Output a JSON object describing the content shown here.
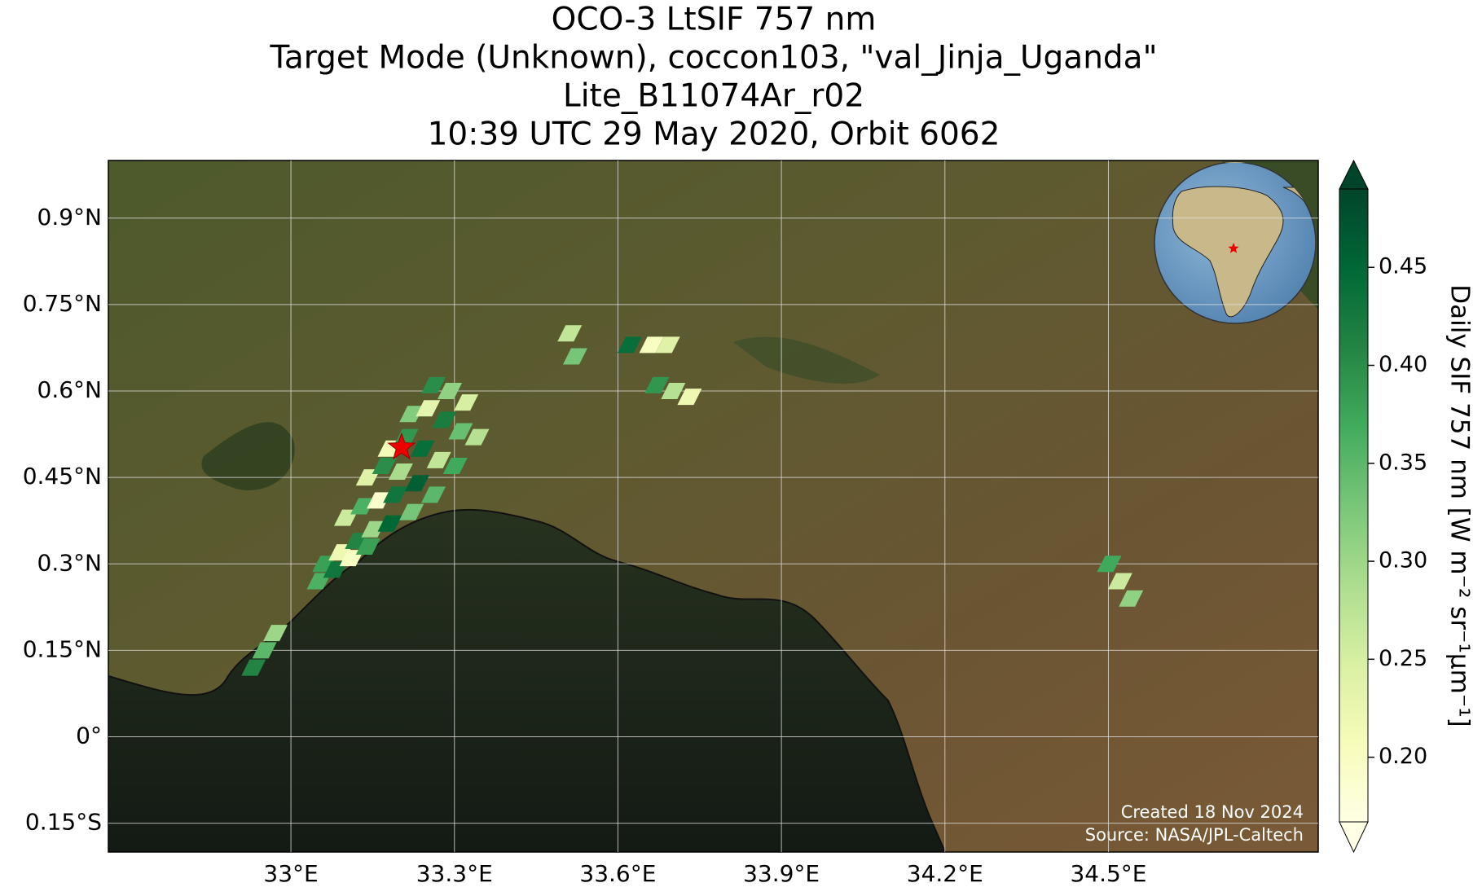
{
  "chart_data": {
    "type": "map",
    "title": "OCO-3 LtSIF 757 nm",
    "subtitle": [
      "Target Mode (Unknown), coccon103, \"val_Jinja_Uganda\"",
      "Lite_B11074Ar_r02",
      "10:39 UTC 29 May 2020, Orbit 6062"
    ],
    "xlim": [
      32.665,
      34.885
    ],
    "ylim": [
      -0.2,
      1.0
    ],
    "xticks": [
      {
        "value": 33,
        "label": "33°E"
      },
      {
        "value": 33.3,
        "label": "33.3°E"
      },
      {
        "value": 33.6,
        "label": "33.6°E"
      },
      {
        "value": 33.9,
        "label": "33.9°E"
      },
      {
        "value": 34.2,
        "label": "34.2°E"
      },
      {
        "value": 34.5,
        "label": "34.5°E"
      }
    ],
    "yticks": [
      {
        "value": -0.15,
        "label": "0.15°S"
      },
      {
        "value": 0,
        "label": "0°"
      },
      {
        "value": 0.15,
        "label": "0.15°N"
      },
      {
        "value": 0.3,
        "label": "0.3°N"
      },
      {
        "value": 0.45,
        "label": "0.45°N"
      },
      {
        "value": 0.6,
        "label": "0.6°N"
      },
      {
        "value": 0.75,
        "label": "0.75°N"
      },
      {
        "value": 0.9,
        "label": "0.9°N"
      }
    ],
    "grid": true,
    "colorbar": {
      "label": "Daily SIF 757 nm [W m⁻² sr⁻¹μm⁻¹]",
      "clim": [
        0.167,
        0.49
      ],
      "ticks": [
        {
          "value": 0.2,
          "label": "0.20"
        },
        {
          "value": 0.25,
          "label": "0.25"
        },
        {
          "value": 0.3,
          "label": "0.30"
        },
        {
          "value": 0.35,
          "label": "0.35"
        },
        {
          "value": 0.4,
          "label": "0.40"
        },
        {
          "value": 0.45,
          "label": "0.45"
        }
      ],
      "colormap": [
        "#ffffe5",
        "#f7fcb9",
        "#d9f0a3",
        "#addd8e",
        "#78c679",
        "#41ab5d",
        "#238443",
        "#006837",
        "#004529"
      ]
    },
    "soundings": {
      "lon": [
        33.06,
        33.09,
        33.12,
        33.15,
        33.18,
        33.1,
        33.13,
        33.16,
        33.19,
        33.22,
        33.14,
        33.17,
        33.2,
        33.23,
        33.26,
        33.18,
        33.21,
        33.24,
        33.27,
        33.3,
        33.22,
        33.25,
        33.28,
        33.31,
        33.34,
        33.26,
        33.29,
        33.32,
        33.05,
        33.08,
        33.11,
        33.14,
        32.93,
        32.95,
        32.97,
        33.52,
        33.51,
        33.62,
        33.67,
        33.7,
        33.73,
        34.5,
        34.52,
        34.54,
        33.66,
        33.69
      ],
      "lat": [
        0.3,
        0.32,
        0.34,
        0.36,
        0.37,
        0.38,
        0.4,
        0.41,
        0.42,
        0.39,
        0.45,
        0.47,
        0.46,
        0.44,
        0.42,
        0.5,
        0.52,
        0.5,
        0.48,
        0.47,
        0.56,
        0.57,
        0.55,
        0.53,
        0.52,
        0.61,
        0.6,
        0.58,
        0.27,
        0.29,
        0.31,
        0.33,
        0.12,
        0.15,
        0.18,
        0.66,
        0.7,
        0.68,
        0.61,
        0.6,
        0.59,
        0.3,
        0.27,
        0.24,
        0.68,
        0.68
      ],
      "values": [
        0.38,
        0.22,
        0.41,
        0.3,
        0.45,
        0.26,
        0.36,
        0.19,
        0.43,
        0.33,
        0.24,
        0.4,
        0.29,
        0.46,
        0.35,
        0.21,
        0.39,
        0.44,
        0.27,
        0.37,
        0.32,
        0.23,
        0.42,
        0.34,
        0.28,
        0.4,
        0.31,
        0.25,
        0.36,
        0.43,
        0.2,
        0.38,
        0.41,
        0.35,
        0.3,
        0.33,
        0.27,
        0.44,
        0.39,
        0.28,
        0.22,
        0.37,
        0.26,
        0.31,
        0.2,
        0.24
      ]
    },
    "target": {
      "lon": 33.203,
      "lat": 0.502
    },
    "credits": [
      "Created 18 Nov 2024",
      "Source: NASA/JPL-Caltech"
    ]
  }
}
